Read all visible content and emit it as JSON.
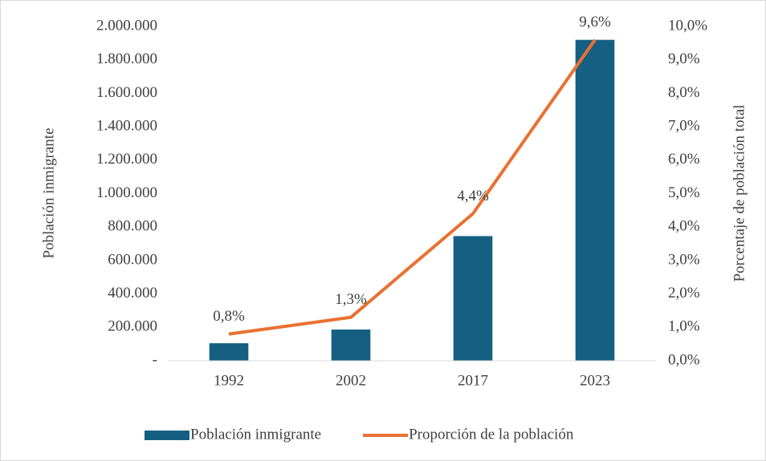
{
  "chart_data": {
    "type": "bar_line",
    "categories": [
      "1992",
      "2002",
      "2017",
      "2023"
    ],
    "series": [
      {
        "name": "Población inmigrante",
        "type": "bar",
        "color": "#156082",
        "values": [
          105000,
          187000,
          746000,
          1920000
        ]
      },
      {
        "name": "Proporción de la población",
        "type": "line",
        "axis": "y2",
        "color": "#e97132",
        "values": [
          0.8,
          1.3,
          4.4,
          9.6
        ],
        "value_labels": [
          "0,8%",
          "1,3%",
          "4,4%",
          "9,6%"
        ]
      }
    ],
    "ylabel": "Población inmigrante",
    "y2label": "Porcentaje de población total",
    "ylim": [
      0,
      2000000
    ],
    "yticks": [
      {
        "value": 0,
        "label": "-"
      },
      {
        "value": 200000,
        "label": "200.000"
      },
      {
        "value": 400000,
        "label": "400.000"
      },
      {
        "value": 600000,
        "label": "600.000"
      },
      {
        "value": 800000,
        "label": "800.000"
      },
      {
        "value": 1000000,
        "label": "1.000.000"
      },
      {
        "value": 1200000,
        "label": "1.200.000"
      },
      {
        "value": 1400000,
        "label": "1.400.000"
      },
      {
        "value": 1600000,
        "label": "1.600.000"
      },
      {
        "value": 1800000,
        "label": "1.800.000"
      },
      {
        "value": 2000000,
        "label": "2.000.000"
      }
    ],
    "y2lim": [
      0,
      10
    ],
    "y2ticks": [
      {
        "value": 0,
        "label": "0,0%"
      },
      {
        "value": 1,
        "label": "1,0%"
      },
      {
        "value": 2,
        "label": "2,0%"
      },
      {
        "value": 3,
        "label": "3,0%"
      },
      {
        "value": 4,
        "label": "4,0%"
      },
      {
        "value": 5,
        "label": "5,0%"
      },
      {
        "value": 6,
        "label": "6,0%"
      },
      {
        "value": 7,
        "label": "7,0%"
      },
      {
        "value": 8,
        "label": "8,0%"
      },
      {
        "value": 9,
        "label": "9,0%"
      },
      {
        "value": 10,
        "label": "10,0%"
      }
    ],
    "grid": false,
    "legend": "bottom"
  }
}
